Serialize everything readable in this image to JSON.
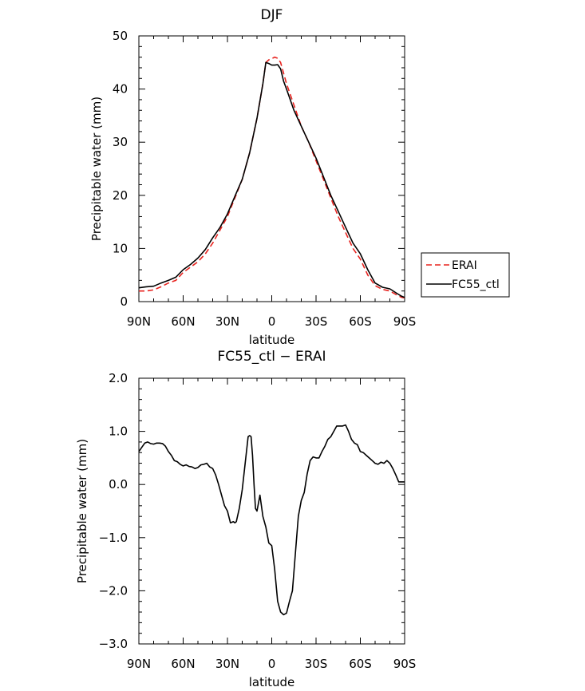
{
  "chart_data": [
    {
      "type": "line",
      "title": "DJF",
      "xlabel": "latitude",
      "ylabel": "Precipitable water (mm)",
      "xlim": [
        90,
        -90
      ],
      "ylim": [
        0,
        50
      ],
      "x_ticks": [
        {
          "value": 90,
          "label": "90N"
        },
        {
          "value": 60,
          "label": "60N"
        },
        {
          "value": 30,
          "label": "30N"
        },
        {
          "value": 0,
          "label": "0"
        },
        {
          "value": -30,
          "label": "30S"
        },
        {
          "value": -60,
          "label": "60S"
        },
        {
          "value": -90,
          "label": "90S"
        }
      ],
      "y_ticks": [
        {
          "value": 0,
          "label": "0"
        },
        {
          "value": 10,
          "label": "10"
        },
        {
          "value": 20,
          "label": "20"
        },
        {
          "value": 30,
          "label": "30"
        },
        {
          "value": 40,
          "label": "40"
        },
        {
          "value": 50,
          "label": "50"
        }
      ],
      "legend": "right",
      "series": [
        {
          "name": "ERAI",
          "color": "#e8231f",
          "dash": "dashed",
          "x": [
            90,
            85,
            80,
            75,
            70,
            65,
            60,
            55,
            50,
            45,
            40,
            35,
            30,
            25,
            20,
            15,
            10,
            6,
            4,
            2,
            0,
            -2,
            -4,
            -6,
            -8,
            -10,
            -15,
            -20,
            -25,
            -30,
            -35,
            -40,
            -45,
            -50,
            -55,
            -60,
            -65,
            -70,
            -75,
            -80,
            -85,
            -88,
            -90
          ],
          "values": [
            2.0,
            2.0,
            2.2,
            2.8,
            3.5,
            4.0,
            5.5,
            6.5,
            7.5,
            9.0,
            11.0,
            13.5,
            16.0,
            19.5,
            23.0,
            28.0,
            34.5,
            41.0,
            45.0,
            45.5,
            45.7,
            46.0,
            45.8,
            45.0,
            43.0,
            41.0,
            37.0,
            33.0,
            30.0,
            26.5,
            23.0,
            19.5,
            16.0,
            13.0,
            10.0,
            8.0,
            5.0,
            3.0,
            2.3,
            2.0,
            1.2,
            0.8,
            0.7
          ]
        },
        {
          "name": "FC55_ctl",
          "color": "#000000",
          "dash": "solid",
          "x": [
            90,
            85,
            80,
            75,
            70,
            65,
            60,
            55,
            50,
            45,
            40,
            35,
            30,
            25,
            20,
            15,
            10,
            6,
            4,
            2,
            0,
            -2,
            -4,
            -6,
            -8,
            -10,
            -15,
            -20,
            -25,
            -30,
            -35,
            -40,
            -45,
            -50,
            -55,
            -60,
            -65,
            -70,
            -75,
            -80,
            -85,
            -88,
            -90
          ],
          "values": [
            2.6,
            2.8,
            2.9,
            3.5,
            4.0,
            4.6,
            6.0,
            7.0,
            8.2,
            9.8,
            12.0,
            14.0,
            16.5,
            19.8,
            23.0,
            28.0,
            34.5,
            41.0,
            45.0,
            44.8,
            44.5,
            44.5,
            44.6,
            43.8,
            41.5,
            40.0,
            36.0,
            33.0,
            30.0,
            27.0,
            23.5,
            20.0,
            17.0,
            14.0,
            11.0,
            9.0,
            6.0,
            3.5,
            2.7,
            2.4,
            1.5,
            1.0,
            0.8
          ]
        }
      ]
    },
    {
      "type": "line",
      "title": "FC55_ctl − ERAI",
      "xlabel": "latitude",
      "ylabel": "Precipitable water (mm)",
      "xlim": [
        90,
        -90
      ],
      "ylim": [
        -3.0,
        2.0
      ],
      "x_ticks": [
        {
          "value": 90,
          "label": "90N"
        },
        {
          "value": 60,
          "label": "60N"
        },
        {
          "value": 30,
          "label": "30N"
        },
        {
          "value": 0,
          "label": "0"
        },
        {
          "value": -30,
          "label": "30S"
        },
        {
          "value": -60,
          "label": "60S"
        },
        {
          "value": -90,
          "label": "90S"
        }
      ],
      "y_ticks": [
        {
          "value": 2.0,
          "label": "2.0"
        },
        {
          "value": 1.0,
          "label": "1.0"
        },
        {
          "value": 0.0,
          "label": "0.0"
        },
        {
          "value": -1.0,
          "label": "−1.0"
        },
        {
          "value": -2.0,
          "label": "−2.0"
        },
        {
          "value": -3.0,
          "label": "−3.0"
        }
      ],
      "series": [
        {
          "color": "#000000",
          "dash": "solid",
          "x": [
            90,
            88,
            86,
            84,
            82,
            80,
            78,
            76,
            74,
            72,
            70,
            68,
            66,
            64,
            62,
            60,
            58,
            56,
            54,
            52,
            50,
            48,
            46,
            44,
            42,
            40,
            38,
            36,
            34,
            32,
            30,
            28,
            26,
            25,
            24,
            22,
            20,
            18,
            16,
            15,
            14,
            13,
            12,
            11,
            10,
            8,
            6,
            4,
            2,
            0,
            -2,
            -4,
            -6,
            -8,
            -10,
            -12,
            -14,
            -16,
            -18,
            -20,
            -22,
            -24,
            -26,
            -28,
            -30,
            -32,
            -34,
            -36,
            -38,
            -40,
            -42,
            -44,
            -46,
            -48,
            -50,
            -52,
            -54,
            -56,
            -58,
            -60,
            -62,
            -64,
            -66,
            -68,
            -70,
            -72,
            -74,
            -76,
            -78,
            -80,
            -82,
            -84,
            -86,
            -88,
            -90
          ],
          "values": [
            0.62,
            0.7,
            0.78,
            0.8,
            0.77,
            0.76,
            0.78,
            0.78,
            0.77,
            0.72,
            0.62,
            0.55,
            0.45,
            0.43,
            0.38,
            0.35,
            0.37,
            0.34,
            0.33,
            0.3,
            0.32,
            0.37,
            0.38,
            0.4,
            0.33,
            0.3,
            0.18,
            0.0,
            -0.2,
            -0.4,
            -0.5,
            -0.72,
            -0.7,
            -0.72,
            -0.7,
            -0.45,
            -0.1,
            0.4,
            0.9,
            0.92,
            0.9,
            0.55,
            0.0,
            -0.45,
            -0.5,
            -0.2,
            -0.6,
            -0.8,
            -1.1,
            -1.15,
            -1.6,
            -2.2,
            -2.4,
            -2.45,
            -2.42,
            -2.2,
            -2.0,
            -1.3,
            -0.6,
            -0.3,
            -0.15,
            0.2,
            0.45,
            0.52,
            0.5,
            0.5,
            0.62,
            0.72,
            0.85,
            0.9,
            1.0,
            1.1,
            1.1,
            1.1,
            1.12,
            1.0,
            0.85,
            0.78,
            0.75,
            0.62,
            0.6,
            0.55,
            0.5,
            0.45,
            0.4,
            0.38,
            0.42,
            0.4,
            0.45,
            0.4,
            0.3,
            0.18,
            0.05,
            0.05,
            0.05
          ]
        }
      ]
    }
  ]
}
